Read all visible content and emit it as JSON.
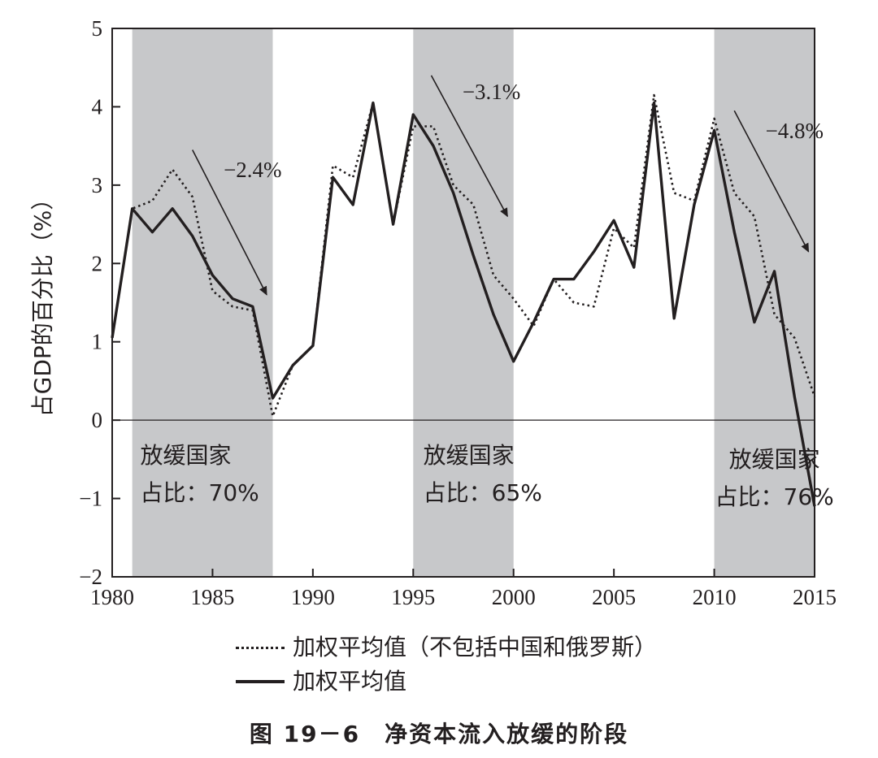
{
  "chart_data": {
    "type": "line",
    "ylabel": "占GDP的百分比（%）",
    "xlim": [
      1980,
      2015
    ],
    "ylim": [
      -2,
      5
    ],
    "x_ticks": [
      1980,
      1985,
      1990,
      1995,
      2000,
      2005,
      2010,
      2015
    ],
    "x_tick_labels": [
      "1980",
      "1985",
      "1990",
      "1995",
      "2000",
      "2005",
      "2010",
      "2015"
    ],
    "y_ticks": [
      5,
      4,
      3,
      2,
      1,
      0,
      -1,
      -2
    ],
    "y_tick_labels": [
      "5",
      "4",
      "3",
      "2",
      "1",
      "0",
      "−1",
      "−2"
    ],
    "slowdown_periods": [
      {
        "start": 1981,
        "end": 1988,
        "label_line1": "放缓国家",
        "label_line2": "占比：70%",
        "slope_label": "−2.4%"
      },
      {
        "start": 1995,
        "end": 2000,
        "label_line1": "放缓国家",
        "label_line2": "占比：65%",
        "slope_label": "−3.1%"
      },
      {
        "start": 2010,
        "end": 2015,
        "label_line1": "放缓国家",
        "label_line2": "占比：76%",
        "slope_label": "−4.8%"
      }
    ],
    "x": [
      1980,
      1981,
      1982,
      1983,
      1984,
      1985,
      1986,
      1987,
      1988,
      1989,
      1990,
      1991,
      1992,
      1993,
      1994,
      1995,
      1996,
      1997,
      1998,
      1999,
      2000,
      2001,
      2002,
      2003,
      2004,
      2005,
      2006,
      2007,
      2008,
      2009,
      2010,
      2011,
      2012,
      2013,
      2014,
      2015
    ],
    "series": [
      {
        "name": "加权平均值（不包括中国和俄罗斯）",
        "style": "dotted",
        "values": [
          1.05,
          2.7,
          2.8,
          3.2,
          2.85,
          1.65,
          1.45,
          1.4,
          0.05,
          0.7,
          0.95,
          3.25,
          3.1,
          4.05,
          2.5,
          3.75,
          3.75,
          3.0,
          2.75,
          1.85,
          1.55,
          1.2,
          1.8,
          1.5,
          1.45,
          2.45,
          2.2,
          4.15,
          2.9,
          2.8,
          3.85,
          2.9,
          2.6,
          1.35,
          1.05,
          0.3
        ]
      },
      {
        "name": "加权平均值",
        "style": "solid",
        "values": [
          1.05,
          2.7,
          2.4,
          2.7,
          2.35,
          1.85,
          1.55,
          1.45,
          0.28,
          0.7,
          0.95,
          3.1,
          2.75,
          4.05,
          2.5,
          3.9,
          3.5,
          2.9,
          2.1,
          1.35,
          0.75,
          1.25,
          1.8,
          1.8,
          2.15,
          2.55,
          1.95,
          4.05,
          1.3,
          2.75,
          3.7,
          2.4,
          1.25,
          1.9,
          0.3,
          -1.1
        ]
      }
    ]
  },
  "legend": {
    "dotted_label": "加权平均值（不包括中国和俄罗斯）",
    "solid_label": "加权平均值"
  },
  "caption": "图 19－6　净资本流入放缓的阶段"
}
